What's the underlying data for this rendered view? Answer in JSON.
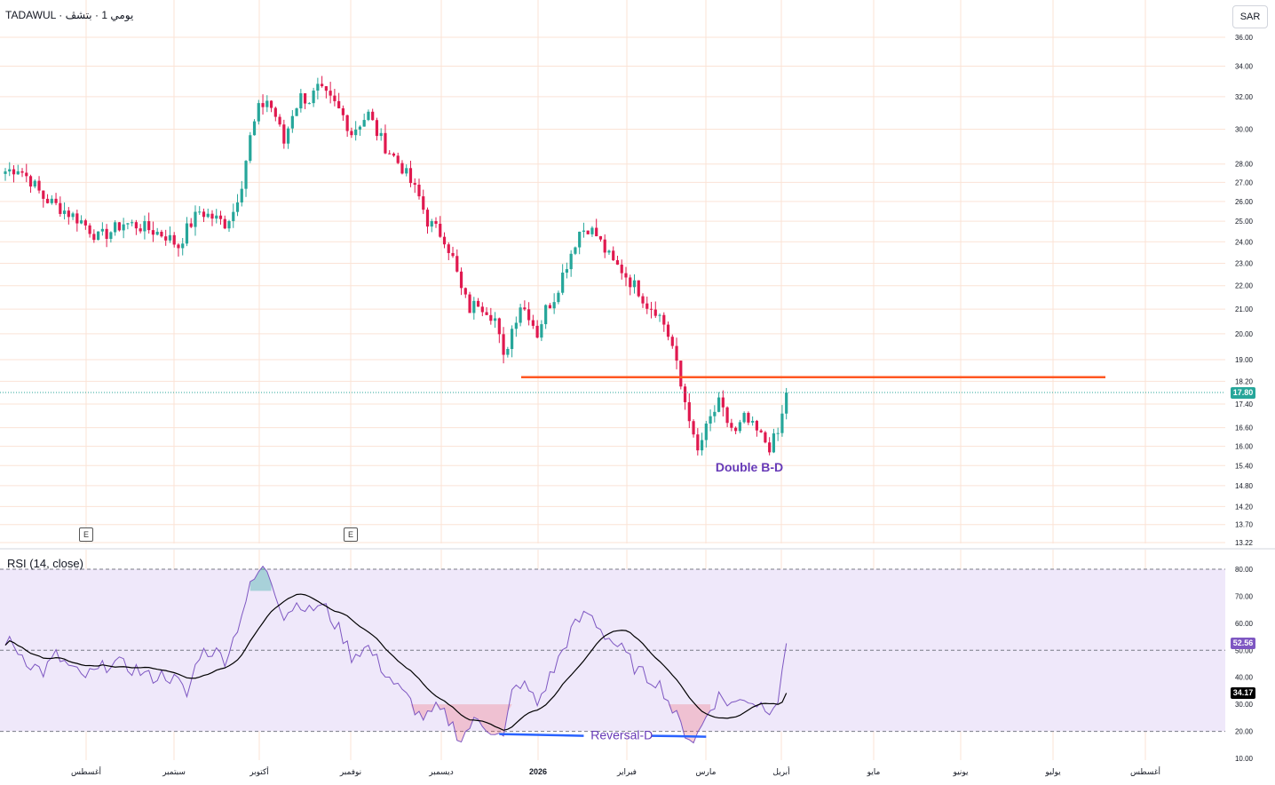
{
  "header": {
    "symbol": "TADAWUL",
    "separator": " · ",
    "interval": "يومي 1 · بتشڤ",
    "currency": "SAR"
  },
  "colors": {
    "up": "#26a69a",
    "down": "#e0194f",
    "line_support": "#ff5722",
    "rsi_line": "#7e57c2",
    "rsi_ma": "#000000",
    "rsi_band": "#efe8fa",
    "last_price": "#26a69a",
    "grid": "#fbe3d6",
    "annotation": "#673ab7"
  },
  "price_axis": {
    "ticks": [
      "36.00",
      "34.00",
      "32.00",
      "30.00",
      "28.00",
      "27.00",
      "26.00",
      "25.00",
      "24.00",
      "23.00",
      "22.00",
      "21.00",
      "20.00",
      "19.00",
      "18.20",
      "17.40",
      "16.60",
      "16.00",
      "15.40",
      "14.80",
      "14.20",
      "13.70",
      "13.22"
    ],
    "last_price_label": "17.80"
  },
  "rsi_axis": {
    "ticks": [
      "80.00",
      "70.00",
      "60.00",
      "50.00",
      "40.00",
      "30.00",
      "20.00",
      "10.00"
    ],
    "rsi_value_label": "52.56",
    "rsi_ma_label": "34.17"
  },
  "rsi_panel": {
    "title": "RSI (14, close)"
  },
  "time_axis": {
    "labels": [
      "أغسطس",
      "سبتمبر",
      "أكتوبر",
      "نوفمبر",
      "ديسمبر",
      "2026",
      "فبراير",
      "مارس",
      "أبريل",
      "مايو",
      "يونيو",
      "يوليو",
      "أغسطس"
    ]
  },
  "earnings_markers": [
    {
      "label": "E"
    },
    {
      "label": "E"
    }
  ],
  "annotations": {
    "double_bottom": "Double B-D",
    "reversal": "Reversal-D"
  },
  "chart_data": [
    {
      "type": "candlestick",
      "scale": "log",
      "ylim": [
        13.22,
        36.0
      ],
      "support_level": 18.35,
      "last_price": 17.8,
      "anchors": [
        [
          0,
          27.6
        ],
        [
          3,
          27.8
        ],
        [
          6,
          27.1
        ],
        [
          9,
          26.2
        ],
        [
          12,
          25.8
        ],
        [
          15,
          25.4
        ],
        [
          18,
          25.0
        ],
        [
          22,
          24.2
        ],
        [
          25,
          24.5
        ],
        [
          28,
          24.9
        ],
        [
          31,
          24.8
        ],
        [
          34,
          24.6
        ],
        [
          38,
          24.3
        ],
        [
          41,
          23.8
        ],
        [
          43,
          24.6
        ],
        [
          46,
          25.5
        ],
        [
          49,
          25.2
        ],
        [
          52,
          24.9
        ],
        [
          54,
          25.5
        ],
        [
          56,
          27.0
        ],
        [
          58,
          29.5
        ],
        [
          60,
          31.2
        ],
        [
          62,
          31.8
        ],
        [
          64,
          30.8
        ],
        [
          66,
          29.2
        ],
        [
          68,
          31.0
        ],
        [
          70,
          32.0
        ],
        [
          72,
          31.8
        ],
        [
          74,
          32.5
        ],
        [
          76,
          32.0
        ],
        [
          78,
          31.5
        ],
        [
          80,
          30.8
        ],
        [
          82,
          29.8
        ],
        [
          84,
          30.4
        ],
        [
          86,
          30.9
        ],
        [
          88,
          29.8
        ],
        [
          90,
          29.0
        ],
        [
          92,
          28.4
        ],
        [
          94,
          27.8
        ],
        [
          96,
          27.0
        ],
        [
          98,
          26.2
        ],
        [
          100,
          25.0
        ],
        [
          102,
          24.6
        ],
        [
          104,
          24.2
        ],
        [
          106,
          23.2
        ],
        [
          108,
          21.8
        ],
        [
          110,
          21.0
        ],
        [
          112,
          21.3
        ],
        [
          114,
          21.0
        ],
        [
          116,
          20.6
        ],
        [
          118,
          19.0
        ],
        [
          120,
          20.2
        ],
        [
          122,
          21.2
        ],
        [
          124,
          20.8
        ],
        [
          126,
          20.0
        ],
        [
          128,
          21.0
        ],
        [
          130,
          21.5
        ],
        [
          132,
          22.5
        ],
        [
          134,
          23.5
        ],
        [
          136,
          24.5
        ],
        [
          138,
          24.7
        ],
        [
          140,
          24.3
        ],
        [
          142,
          23.6
        ],
        [
          144,
          23.0
        ],
        [
          146,
          22.7
        ],
        [
          148,
          22.2
        ],
        [
          150,
          21.8
        ],
        [
          152,
          21.2
        ],
        [
          154,
          21.0
        ],
        [
          156,
          20.4
        ],
        [
          158,
          19.5
        ],
        [
          160,
          18.0
        ],
        [
          162,
          17.0
        ],
        [
          163,
          16.2
        ],
        [
          164,
          15.8
        ],
        [
          165,
          16.2
        ],
        [
          167,
          16.9
        ],
        [
          169,
          17.4
        ],
        [
          171,
          16.8
        ],
        [
          173,
          16.4
        ],
        [
          175,
          16.9
        ],
        [
          177,
          16.6
        ],
        [
          179,
          16.3
        ],
        [
          181,
          16.0
        ],
        [
          183,
          16.4
        ],
        [
          184,
          17.0
        ],
        [
          185,
          17.8
        ]
      ],
      "rsi": {
        "levels": [
          80,
          50,
          20
        ],
        "ylim": [
          10,
          80
        ],
        "anchors": [
          [
            0,
            54
          ],
          [
            3,
            50
          ],
          [
            6,
            45
          ],
          [
            9,
            42
          ],
          [
            12,
            48
          ],
          [
            15,
            44
          ],
          [
            18,
            40
          ],
          [
            22,
            42
          ],
          [
            25,
            46
          ],
          [
            28,
            44
          ],
          [
            31,
            43
          ],
          [
            34,
            40
          ],
          [
            38,
            41
          ],
          [
            41,
            38
          ],
          [
            43,
            33
          ],
          [
            46,
            49
          ],
          [
            49,
            50
          ],
          [
            52,
            47
          ],
          [
            54,
            54
          ],
          [
            56,
            64
          ],
          [
            58,
            73
          ],
          [
            60,
            79
          ],
          [
            62,
            80
          ],
          [
            64,
            72
          ],
          [
            66,
            63
          ],
          [
            68,
            66
          ],
          [
            70,
            68
          ],
          [
            72,
            64
          ],
          [
            74,
            67
          ],
          [
            76,
            65
          ],
          [
            78,
            60
          ],
          [
            80,
            55
          ],
          [
            82,
            48
          ],
          [
            84,
            50
          ],
          [
            86,
            51
          ],
          [
            88,
            46
          ],
          [
            90,
            42
          ],
          [
            92,
            38
          ],
          [
            94,
            34
          ],
          [
            96,
            31
          ],
          [
            98,
            26
          ],
          [
            100,
            25
          ],
          [
            102,
            28
          ],
          [
            104,
            26
          ],
          [
            106,
            22
          ],
          [
            108,
            17
          ],
          [
            110,
            22
          ],
          [
            112,
            24
          ],
          [
            114,
            22
          ],
          [
            116,
            20
          ],
          [
            118,
            17
          ],
          [
            120,
            34
          ],
          [
            122,
            38
          ],
          [
            124,
            35
          ],
          [
            126,
            30
          ],
          [
            128,
            37
          ],
          [
            130,
            43
          ],
          [
            132,
            50
          ],
          [
            134,
            57
          ],
          [
            136,
            61
          ],
          [
            138,
            64
          ],
          [
            140,
            60
          ],
          [
            142,
            56
          ],
          [
            144,
            53
          ],
          [
            146,
            50
          ],
          [
            148,
            46
          ],
          [
            150,
            42
          ],
          [
            152,
            40
          ],
          [
            154,
            39
          ],
          [
            156,
            35
          ],
          [
            158,
            28
          ],
          [
            160,
            22
          ],
          [
            162,
            18
          ],
          [
            163,
            17
          ],
          [
            164,
            19
          ],
          [
            165,
            22
          ],
          [
            167,
            29
          ],
          [
            169,
            33
          ],
          [
            171,
            31
          ],
          [
            173,
            30
          ],
          [
            175,
            33
          ],
          [
            177,
            31
          ],
          [
            179,
            30
          ],
          [
            181,
            29
          ],
          [
            183,
            32
          ],
          [
            184,
            40
          ],
          [
            185,
            52.56
          ]
        ],
        "ma_last": 34.17
      }
    }
  ]
}
